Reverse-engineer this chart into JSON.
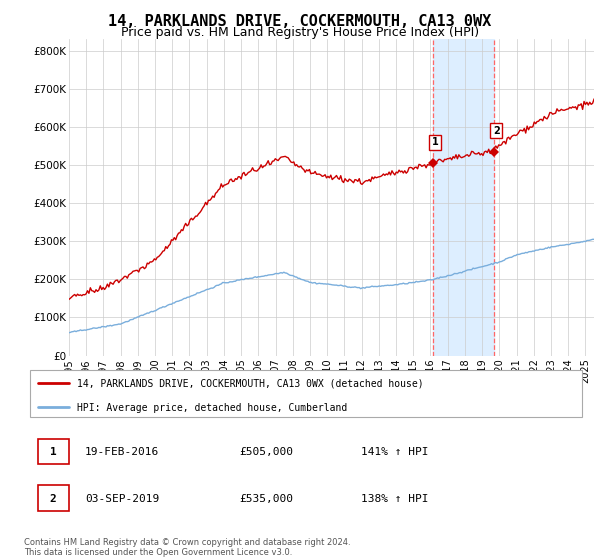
{
  "title": "14, PARKLANDS DRIVE, COCKERMOUTH, CA13 0WX",
  "subtitle": "Price paid vs. HM Land Registry's House Price Index (HPI)",
  "title_fontsize": 11,
  "subtitle_fontsize": 9,
  "ylabel_ticks": [
    "£0",
    "£100K",
    "£200K",
    "£300K",
    "£400K",
    "£500K",
    "£600K",
    "£700K",
    "£800K"
  ],
  "ytick_vals": [
    0,
    100000,
    200000,
    300000,
    400000,
    500000,
    600000,
    700000,
    800000
  ],
  "ylim": [
    0,
    830000
  ],
  "xlim_start": 1995.0,
  "xlim_end": 2025.5,
  "xtick_years": [
    1995,
    1996,
    1997,
    1998,
    1999,
    2000,
    2001,
    2002,
    2003,
    2004,
    2005,
    2006,
    2007,
    2008,
    2009,
    2010,
    2011,
    2012,
    2013,
    2014,
    2015,
    2016,
    2017,
    2018,
    2019,
    2020,
    2021,
    2022,
    2023,
    2024,
    2025
  ],
  "sale1_x": 2016.13,
  "sale1_y": 505000,
  "sale2_x": 2019.67,
  "sale2_y": 535000,
  "red_color": "#cc0000",
  "blue_color": "#7aaedc",
  "shade_color": "#ddeeff",
  "vline_color": "#ff6666",
  "legend_label1": "14, PARKLANDS DRIVE, COCKERMOUTH, CA13 0WX (detached house)",
  "legend_label2": "HPI: Average price, detached house, Cumberland",
  "annotation1_date": "19-FEB-2016",
  "annotation1_price": "£505,000",
  "annotation1_hpi": "141% ↑ HPI",
  "annotation2_date": "03-SEP-2019",
  "annotation2_price": "£535,000",
  "annotation2_hpi": "138% ↑ HPI",
  "footer": "Contains HM Land Registry data © Crown copyright and database right 2024.\nThis data is licensed under the Open Government Licence v3.0.",
  "background_color": "#ffffff",
  "grid_color": "#cccccc"
}
